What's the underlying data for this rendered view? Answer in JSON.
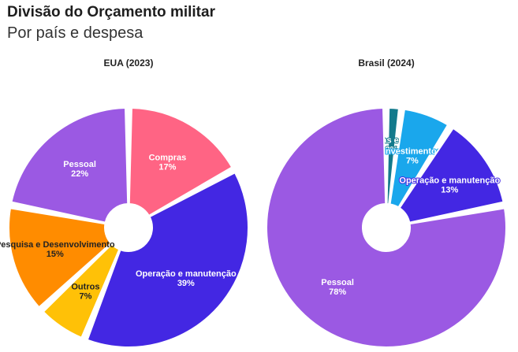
{
  "header": {
    "title": "Divisão do Orçamento militar",
    "subtitle": "Por país e despesa"
  },
  "chart_data": [
    {
      "type": "pie",
      "title": "EUA (2023)",
      "slices": [
        {
          "label": "Compras",
          "value": 17,
          "value_label": "17%",
          "color": "#ff6484",
          "text_color": "#ffffff"
        },
        {
          "label": "Operação e manutenção",
          "value": 39,
          "value_label": "39%",
          "color": "#4327e3",
          "text_color": "#ffffff"
        },
        {
          "label": "Outros",
          "value": 7,
          "value_label": "7%",
          "color": "#ffc107",
          "text_color": "#222222"
        },
        {
          "label": "Pesquisa e Desenvolvimento",
          "value": 15,
          "value_label": "15%",
          "color": "#ff8c00",
          "text_color": "#222222"
        },
        {
          "label": "Pessoal",
          "value": 22,
          "value_label": "22%",
          "color": "#9b59e3",
          "text_color": "#ffffff"
        }
      ]
    },
    {
      "type": "pie",
      "title": "Brasil (2024)",
      "slices": [
        {
          "label": "Dívidas e juros",
          "value": 2,
          "value_label": "2%",
          "color": "#137a8c",
          "text_color": "#ffffff"
        },
        {
          "label": "Investimentos",
          "value": 7,
          "value_label": "7%",
          "color": "#1aa7ec",
          "text_color": "#ffffff"
        },
        {
          "label": "Operação e manutenção",
          "value": 13,
          "value_label": "13%",
          "color": "#4327e3",
          "text_color": "#ffffff"
        },
        {
          "label": "Pessoal",
          "value": 78,
          "value_label": "78%",
          "color": "#9b59e3",
          "text_color": "#ffffff"
        }
      ]
    }
  ]
}
